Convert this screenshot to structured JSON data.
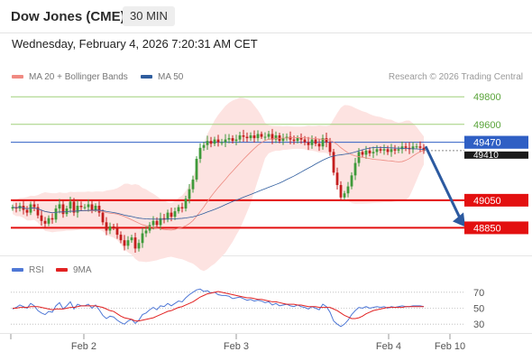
{
  "header": {
    "title": "Dow Jones (CME)",
    "timeframe": "30 MIN"
  },
  "datetime": "Wednesday, February 4, 2026 7:20:31 AM CET",
  "legend": {
    "bb": {
      "label": "MA 20 + Bollinger Bands",
      "color": "#f08a82"
    },
    "ma50": {
      "label": "MA 50",
      "color": "#2f5d9e"
    }
  },
  "credit": "Research © 2026 Trading Central",
  "rsi_legend": {
    "rsi": {
      "label": "RSI",
      "color": "#4f78d6"
    },
    "ma": {
      "label": "9MA",
      "color": "#e22222"
    }
  },
  "colors": {
    "up": "#3f9a3a",
    "down": "#c41e1e",
    "resistance": "#9fd07a",
    "support": "#e31010",
    "pivot": "#2f5fc4",
    "arrow": "#2c5aa0",
    "band": "#fde3e1"
  },
  "chart_data": [
    {
      "type": "candlestick",
      "ylim": [
        48650,
        49880
      ],
      "x_ticks": [
        "Feb 2",
        "Feb 3",
        "Feb 4",
        "Feb 10"
      ],
      "levels": [
        {
          "value": 49800,
          "label": "49800",
          "kind": "resistance"
        },
        {
          "value": 49600,
          "label": "49600",
          "kind": "resistance"
        },
        {
          "value": 49470,
          "label": "49470",
          "kind": "pivot"
        },
        {
          "value": 49050,
          "label": "49050",
          "kind": "support"
        },
        {
          "value": 48850,
          "label": "48850",
          "kind": "support"
        }
      ],
      "last_price": {
        "value": 49410,
        "label": "49410"
      },
      "close": [
        49000,
        48990,
        49010,
        48980,
        48960,
        49020,
        49000,
        48940,
        48900,
        48880,
        48920,
        48910,
        48990,
        49020,
        48950,
        48990,
        49040,
        48960,
        49010,
        49000,
        49000,
        49020,
        48980,
        49010,
        48960,
        48890,
        48830,
        48860,
        48850,
        48800,
        48760,
        48720,
        48760,
        48780,
        48700,
        48740,
        48810,
        48830,
        48870,
        48900,
        48870,
        48920,
        48910,
        48960,
        48930,
        48970,
        49000,
        48990,
        49060,
        49130,
        49200,
        49350,
        49430,
        49450,
        49480,
        49460,
        49490,
        49470,
        49470,
        49490,
        49500,
        49480,
        49490,
        49520,
        49510,
        49500,
        49520,
        49500,
        49530,
        49510,
        49510,
        49530,
        49490,
        49520,
        49480,
        49500,
        49510,
        49490,
        49480,
        49500,
        49490,
        49470,
        49450,
        49490,
        49460,
        49440,
        49500,
        49470,
        49400,
        49250,
        49160,
        49070,
        49100,
        49150,
        49230,
        49320,
        49400,
        49380,
        49410,
        49390,
        49400,
        49420,
        49410,
        49420,
        49400,
        49420,
        49410,
        49420,
        49440,
        49430,
        49420,
        49440,
        49440,
        49430,
        49410
      ]
    },
    {
      "type": "line",
      "name": "RSI",
      "ylim": [
        20,
        80
      ],
      "y_ticks": [
        70,
        50,
        30
      ],
      "series": [
        {
          "name": "RSI",
          "values": [
            49,
            51,
            54,
            52,
            50,
            56,
            53,
            47,
            44,
            42,
            46,
            45,
            53,
            57,
            49,
            53,
            58,
            49,
            55,
            53,
            53,
            55,
            50,
            54,
            48,
            41,
            37,
            40,
            39,
            35,
            32,
            30,
            34,
            36,
            31,
            35,
            42,
            44,
            48,
            51,
            48,
            53,
            52,
            56,
            53,
            56,
            59,
            58,
            63,
            67,
            70,
            73,
            74,
            71,
            72,
            69,
            70,
            67,
            66,
            66,
            65,
            62,
            63,
            64,
            62,
            60,
            61,
            59,
            60,
            59,
            57,
            58,
            54,
            56,
            53,
            54,
            55,
            53,
            52,
            54,
            52,
            51,
            49,
            52,
            50,
            48,
            55,
            52,
            45,
            34,
            30,
            27,
            30,
            35,
            42,
            47,
            51,
            50,
            52,
            50,
            51,
            52,
            51,
            52,
            50,
            52,
            51,
            52,
            53,
            52,
            52,
            53,
            53,
            53,
            52
          ]
        },
        {
          "name": "9MA",
          "values": [
            50,
            50,
            51,
            51,
            51,
            52,
            52,
            52,
            51,
            50,
            49,
            48,
            49,
            49,
            49,
            50,
            51,
            51,
            52,
            53,
            53,
            53,
            53,
            53,
            52,
            51,
            49,
            47,
            46,
            43,
            40,
            38,
            37,
            36,
            34,
            34,
            35,
            36,
            37,
            38,
            40,
            42,
            44,
            46,
            47,
            49,
            51,
            52,
            54,
            56,
            58,
            61,
            64,
            66,
            68,
            69,
            70,
            71,
            70,
            69,
            68,
            67,
            66,
            65,
            64,
            63,
            63,
            62,
            61,
            61,
            60,
            59,
            58,
            58,
            57,
            56,
            55,
            55,
            55,
            54,
            54,
            53,
            52,
            52,
            52,
            51,
            51,
            51,
            51,
            49,
            47,
            44,
            41,
            39,
            37,
            37,
            38,
            40,
            43,
            45,
            47,
            48,
            49,
            50,
            51,
            51,
            51,
            51,
            51,
            52,
            52,
            52,
            52,
            52,
            52
          ]
        }
      ]
    }
  ]
}
